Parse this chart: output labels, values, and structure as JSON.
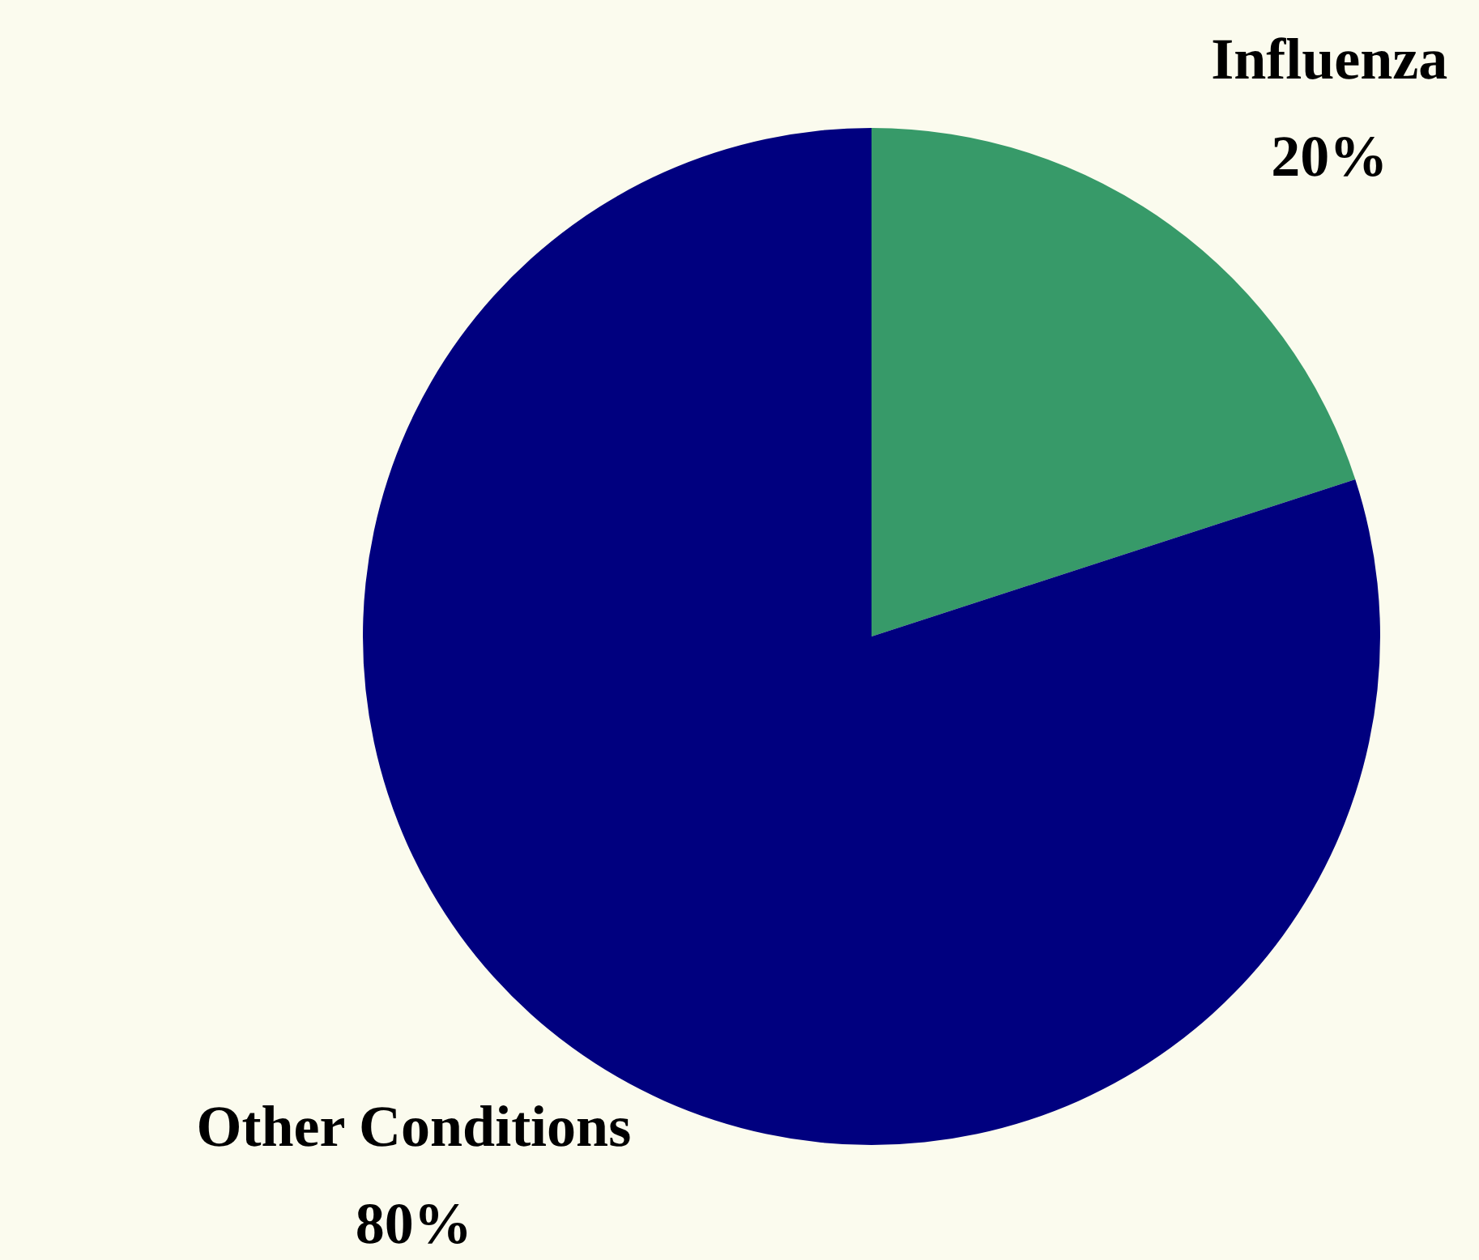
{
  "chart_data": {
    "type": "pie",
    "categories": [
      "Influenza",
      "Other Conditions"
    ],
    "values": [
      20,
      80
    ],
    "colors": [
      "#379a69",
      "#00007f"
    ],
    "value_labels": [
      "20%",
      "80%"
    ]
  }
}
